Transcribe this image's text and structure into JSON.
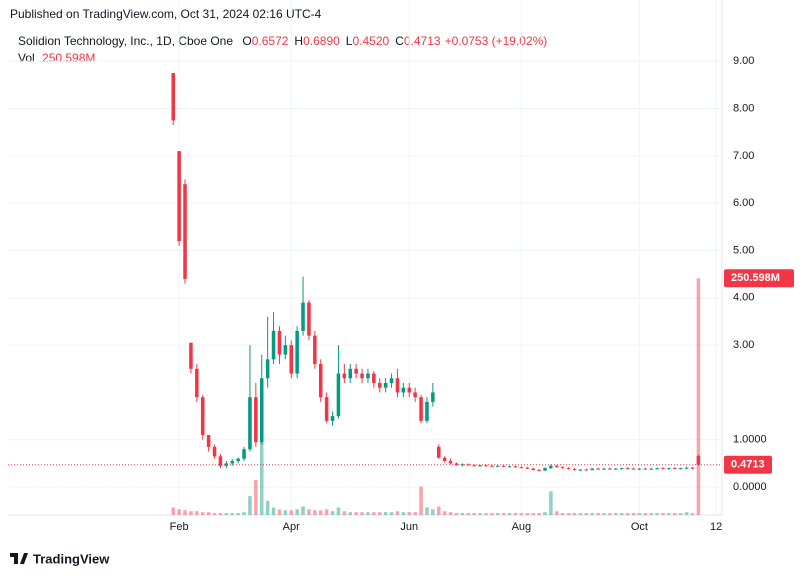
{
  "published": "Published on TradingView.com, Oct 31, 2024 02:16 UTC-4",
  "footer": "TradingView",
  "chart_data": {
    "type": "candlestick",
    "symbol": "Solidion Technology, Inc., 1D, Cboe One",
    "ohlc_labels": [
      "O",
      "H",
      "L",
      "C"
    ],
    "ohlc_values": [
      "0.6572",
      "0.6890",
      "0.4520",
      "0.4713"
    ],
    "change": "+0.0753 (+19.02%)",
    "volume_title": "Vol",
    "up_color": "#089981",
    "down_color": "#f23645",
    "grid": true,
    "ylim": [
      -0.59,
      9.66
    ],
    "yticks": [
      {
        "value": 9,
        "label": "9.00"
      },
      {
        "value": 8,
        "label": "8.00"
      },
      {
        "value": 7,
        "label": "7.00"
      },
      {
        "value": 6,
        "label": "6.00"
      },
      {
        "value": 5,
        "label": "5.00"
      },
      {
        "value": 4,
        "label": "4.00"
      },
      {
        "value": 3,
        "label": "3.00"
      },
      {
        "value": 1,
        "label": "1.0000"
      },
      {
        "value": 0,
        "label": "0.0000"
      }
    ],
    "xlim": [
      -28,
      93
    ],
    "xticks": [
      {
        "value": 1,
        "label": "Feb"
      },
      {
        "value": 20,
        "label": "Apr"
      },
      {
        "value": 40,
        "label": "Jun"
      },
      {
        "value": 59,
        "label": "Aug"
      },
      {
        "value": 79,
        "label": "Oct"
      },
      {
        "value": 92,
        "label": "12"
      }
    ],
    "last_price": 0.4713,
    "candles": [
      [
        8.75,
        8.75,
        7.65,
        7.75
      ],
      [
        7.1,
        7.1,
        5.1,
        5.2
      ],
      [
        6.4,
        6.5,
        4.3,
        4.4
      ],
      [
        3.05,
        3.05,
        2.4,
        2.5
      ],
      [
        2.5,
        2.6,
        1.8,
        1.9
      ],
      [
        1.9,
        1.95,
        1.0,
        1.1
      ],
      [
        1.1,
        1.1,
        0.75,
        0.85
      ],
      [
        0.85,
        0.9,
        0.6,
        0.65
      ],
      [
        0.65,
        0.7,
        0.4,
        0.45
      ],
      [
        0.45,
        0.55,
        0.4,
        0.5
      ],
      [
        0.5,
        0.6,
        0.45,
        0.55
      ],
      [
        0.55,
        0.62,
        0.5,
        0.6
      ],
      [
        0.6,
        0.85,
        0.55,
        0.8
      ],
      [
        0.8,
        3.0,
        0.75,
        1.9
      ],
      [
        1.9,
        2.2,
        0.85,
        0.95
      ],
      [
        0.95,
        2.8,
        0.9,
        2.3
      ],
      [
        2.3,
        3.6,
        2.1,
        2.7
      ],
      [
        2.7,
        3.7,
        2.6,
        3.3
      ],
      [
        3.3,
        3.4,
        2.6,
        2.8
      ],
      [
        2.8,
        3.2,
        2.7,
        3.0
      ],
      [
        3.0,
        3.1,
        2.3,
        2.4
      ],
      [
        2.4,
        3.4,
        2.3,
        3.3
      ],
      [
        3.3,
        4.45,
        3.2,
        3.9
      ],
      [
        3.9,
        3.95,
        3.1,
        3.2
      ],
      [
        3.2,
        3.3,
        2.5,
        2.6
      ],
      [
        2.6,
        2.7,
        1.8,
        1.9
      ],
      [
        1.9,
        2.0,
        1.35,
        1.4
      ],
      [
        1.4,
        1.6,
        1.3,
        1.5
      ],
      [
        1.5,
        3.0,
        1.45,
        2.4
      ],
      [
        2.4,
        2.6,
        2.2,
        2.3
      ],
      [
        2.3,
        2.6,
        2.2,
        2.5
      ],
      [
        2.5,
        2.6,
        2.3,
        2.4
      ],
      [
        2.4,
        2.5,
        2.2,
        2.3
      ],
      [
        2.3,
        2.5,
        2.2,
        2.4
      ],
      [
        2.4,
        2.45,
        2.1,
        2.2
      ],
      [
        2.2,
        2.3,
        2.0,
        2.1
      ],
      [
        2.1,
        2.3,
        2.0,
        2.2
      ],
      [
        2.2,
        2.4,
        2.1,
        2.3
      ],
      [
        2.3,
        2.5,
        1.9,
        2.0
      ],
      [
        2.0,
        2.2,
        1.9,
        2.1
      ],
      [
        2.1,
        2.2,
        1.9,
        2.0
      ],
      [
        2.0,
        2.1,
        1.8,
        1.9
      ],
      [
        1.9,
        1.95,
        1.35,
        1.4
      ],
      [
        1.4,
        1.9,
        1.35,
        1.8
      ],
      [
        1.8,
        2.2,
        1.7,
        2.0
      ],
      [
        0.85,
        0.9,
        0.6,
        0.62
      ],
      [
        0.62,
        0.65,
        0.52,
        0.55
      ],
      [
        0.55,
        0.6,
        0.48,
        0.5
      ],
      [
        0.5,
        0.52,
        0.45,
        0.47
      ],
      [
        0.47,
        0.5,
        0.44,
        0.48
      ],
      [
        0.48,
        0.5,
        0.45,
        0.46
      ],
      [
        0.46,
        0.48,
        0.44,
        0.45
      ],
      [
        0.45,
        0.47,
        0.43,
        0.46
      ],
      [
        0.46,
        0.48,
        0.44,
        0.45
      ],
      [
        0.45,
        0.47,
        0.43,
        0.44
      ],
      [
        0.44,
        0.46,
        0.42,
        0.45
      ],
      [
        0.45,
        0.46,
        0.42,
        0.43
      ],
      [
        0.43,
        0.45,
        0.41,
        0.44
      ],
      [
        0.44,
        0.45,
        0.41,
        0.42
      ],
      [
        0.42,
        0.44,
        0.4,
        0.41
      ],
      [
        0.41,
        0.43,
        0.38,
        0.39
      ],
      [
        0.39,
        0.41,
        0.35,
        0.36
      ],
      [
        0.36,
        0.38,
        0.34,
        0.35
      ],
      [
        0.35,
        0.42,
        0.34,
        0.4
      ],
      [
        0.4,
        0.48,
        0.38,
        0.45
      ],
      [
        0.45,
        0.47,
        0.41,
        0.42
      ],
      [
        0.42,
        0.44,
        0.39,
        0.4
      ],
      [
        0.4,
        0.42,
        0.37,
        0.38
      ],
      [
        0.38,
        0.4,
        0.35,
        0.36
      ],
      [
        0.36,
        0.38,
        0.34,
        0.37
      ],
      [
        0.37,
        0.39,
        0.35,
        0.36
      ],
      [
        0.36,
        0.4,
        0.35,
        0.39
      ],
      [
        0.39,
        0.41,
        0.37,
        0.38
      ],
      [
        0.38,
        0.4,
        0.36,
        0.39
      ],
      [
        0.39,
        0.41,
        0.37,
        0.38
      ],
      [
        0.38,
        0.4,
        0.36,
        0.39
      ],
      [
        0.39,
        0.41,
        0.37,
        0.4
      ],
      [
        0.4,
        0.42,
        0.38,
        0.39
      ],
      [
        0.39,
        0.41,
        0.37,
        0.38
      ],
      [
        0.38,
        0.4,
        0.36,
        0.39
      ],
      [
        0.39,
        0.41,
        0.37,
        0.38
      ],
      [
        0.38,
        0.4,
        0.36,
        0.39
      ],
      [
        0.39,
        0.41,
        0.37,
        0.4
      ],
      [
        0.4,
        0.42,
        0.38,
        0.39
      ],
      [
        0.39,
        0.41,
        0.37,
        0.4
      ],
      [
        0.4,
        0.42,
        0.38,
        0.39
      ],
      [
        0.39,
        0.41,
        0.37,
        0.4
      ],
      [
        0.4,
        0.43,
        0.38,
        0.41
      ],
      [
        0.41,
        0.42,
        0.38,
        0.4
      ],
      [
        0.6572,
        0.689,
        0.452,
        0.4713
      ]
    ],
    "volume": {
      "vlim": [
        0,
        513500000
      ],
      "values": [
        8000000,
        6000000,
        5000000,
        4000000,
        4000000,
        3000000,
        3000000,
        2000000,
        2000000,
        2000000,
        2000000,
        2000000,
        3000000,
        20000000,
        37000000,
        92000000,
        15000000,
        8000000,
        6000000,
        5000000,
        5000000,
        6000000,
        9000000,
        6000000,
        5000000,
        5000000,
        6000000,
        4000000,
        8000000,
        4000000,
        3000000,
        3000000,
        3000000,
        3000000,
        3000000,
        3000000,
        3000000,
        3000000,
        4000000,
        3000000,
        3000000,
        3000000,
        30000000,
        8000000,
        6000000,
        9000000,
        4000000,
        3000000,
        2000000,
        2000000,
        2000000,
        2000000,
        2000000,
        2000000,
        2000000,
        2000000,
        2000000,
        2000000,
        2000000,
        2000000,
        2000000,
        2000000,
        2000000,
        3000000,
        25000000,
        4000000,
        2000000,
        2000000,
        2000000,
        2000000,
        2000000,
        2000000,
        2000000,
        2000000,
        2000000,
        2000000,
        2000000,
        2000000,
        2000000,
        2000000,
        2000000,
        2000000,
        2000000,
        2000000,
        2000000,
        2000000,
        2000000,
        3000000,
        2000000,
        250598000
      ],
      "last_label": "250.598M"
    }
  }
}
